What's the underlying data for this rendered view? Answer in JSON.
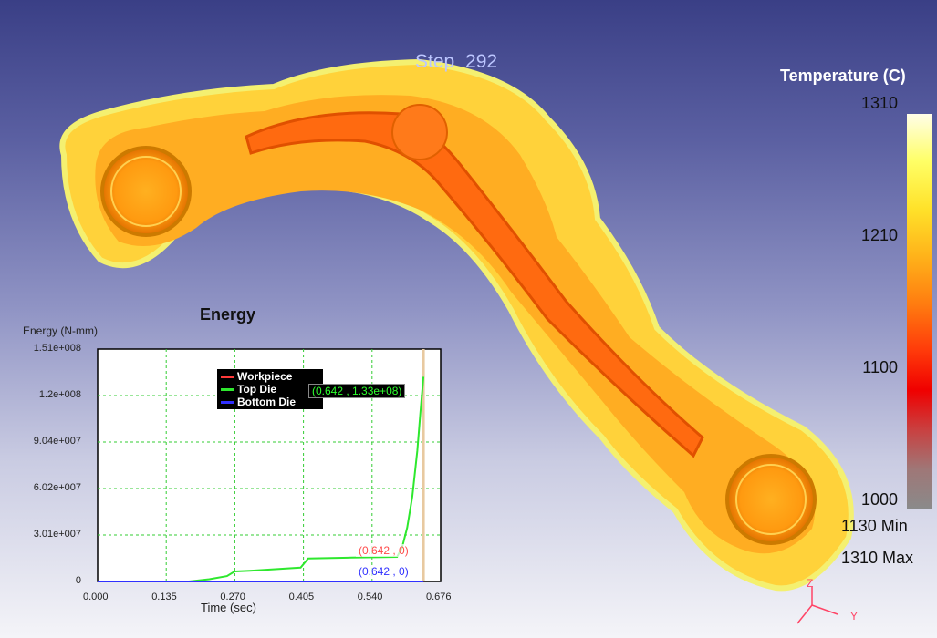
{
  "viewport": {
    "step_label": "Step  292"
  },
  "legend": {
    "title": "Temperature (C)",
    "ticks": [
      "1310",
      "1210",
      "1100",
      "1000"
    ],
    "min_label": "1130  Min",
    "max_label": "1310  Max"
  },
  "axes_triad": {
    "z": "Z",
    "y": "Y"
  },
  "chart_data": {
    "type": "line",
    "title": "Energy",
    "ylabel": "Energy (N-mm)",
    "xlabel": "Time (sec)",
    "x_ticks": [
      "0.000",
      "0.135",
      "0.270",
      "0.405",
      "0.540",
      "0.676"
    ],
    "y_ticks": [
      "0",
      "3.01e+007",
      "6.02e+007",
      "9.04e+007",
      "1.2e+008",
      "1.51e+008"
    ],
    "xlim": [
      0,
      0.676
    ],
    "ylim": [
      0,
      151000000
    ],
    "grid": true,
    "legend_placement": "top-center",
    "series": [
      {
        "name": "Workpiece",
        "color": "#ff3a3a",
        "x": [
          0,
          0.642
        ],
        "y": [
          0,
          0
        ]
      },
      {
        "name": "Top Die",
        "color": "#2ee82e",
        "x": [
          0,
          0.18,
          0.22,
          0.255,
          0.27,
          0.3,
          0.4,
          0.415,
          0.5,
          0.59,
          0.6,
          0.61,
          0.62,
          0.63,
          0.636,
          0.642
        ],
        "y": [
          0,
          0,
          1500000,
          3500000,
          6500000,
          7000000,
          9000000,
          15000000,
          15500000,
          16000000,
          22000000,
          35000000,
          55000000,
          85000000,
          110000000,
          133000000
        ]
      },
      {
        "name": "Bottom Die",
        "color": "#3030ff",
        "x": [
          0,
          0.642
        ],
        "y": [
          0,
          0
        ]
      }
    ],
    "cursor_x": 0.642,
    "readouts": {
      "top_die": "(0.642 , 1.33e+08)",
      "workpiece": "(0.642 , 0)",
      "bottom_die": "(0.642 , 0)"
    }
  }
}
